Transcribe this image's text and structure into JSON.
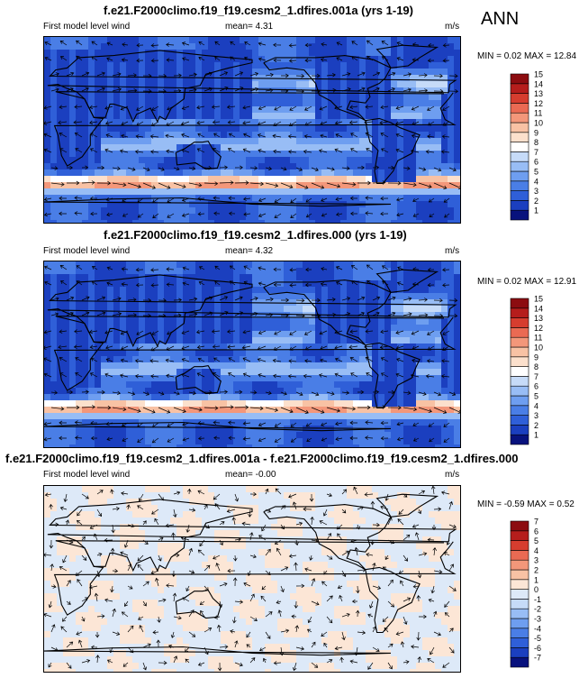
{
  "season": "ANN",
  "colors": {
    "wind_scale": [
      "#08127d",
      "#1b3fbf",
      "#2f5fd8",
      "#4a7ee6",
      "#6e9ef0",
      "#98bdf5",
      "#c6dbf8",
      "#ffffff",
      "#fce0cc",
      "#f8c2a4",
      "#f3977a",
      "#ea6a53",
      "#d63d2f",
      "#b51d1c",
      "#8c0c10"
    ],
    "diff_scale": [
      "#08127d",
      "#1b3fbf",
      "#2f5fd8",
      "#4a7ee6",
      "#6e9ef0",
      "#98bdf5",
      "#c6dbf8",
      "#dde9f8",
      "#fce6d6",
      "#f8c2a4",
      "#f3977a",
      "#ea6a53",
      "#d63d2f",
      "#b51d1c",
      "#8c0c10"
    ]
  },
  "panels": [
    {
      "title": "f.e21.F2000climo.f19_f19.cesm2_1.dfires.001a (yrs 1-19)",
      "field_label": "First model level wind",
      "mean_text": "mean=   4.31",
      "units": "m/s",
      "minmax_text": "MIN =  0.02 MAX =  12.84"
    },
    {
      "title": "f.e21.F2000climo.f19_f19.cesm2_1.dfires.000 (yrs 1-19)",
      "field_label": "First model level wind",
      "mean_text": "mean=   4.32",
      "units": "m/s",
      "minmax_text": "MIN =  0.02 MAX =  12.91"
    },
    {
      "title": "f.e21.F2000climo.f19_f19.cesm2_1.dfires.001a - f.e21.F2000climo.f19_f19.cesm2_1.dfires.000",
      "field_label": "First model level wind",
      "mean_text": "mean=  -0.00",
      "units": "m/s",
      "minmax_text": "MIN = -0.59 MAX =   0.52"
    }
  ],
  "chart_data": [
    {
      "type": "heatmap",
      "title": "f.e21.F2000climo.f19_f19.cesm2_1.dfires.001a (yrs 1-19)",
      "variable": "First model level wind speed with vectors",
      "units": "m/s",
      "mean": 4.31,
      "min": 0.02,
      "max": 12.84,
      "colorbar_levels": [
        1,
        2,
        3,
        4,
        5,
        6,
        7,
        8,
        9,
        10,
        11,
        12,
        13,
        14,
        15
      ]
    },
    {
      "type": "heatmap",
      "title": "f.e21.F2000climo.f19_f19.cesm2_1.dfires.000 (yrs 1-19)",
      "variable": "First model level wind speed with vectors",
      "units": "m/s",
      "mean": 4.32,
      "min": 0.02,
      "max": 12.91,
      "colorbar_levels": [
        1,
        2,
        3,
        4,
        5,
        6,
        7,
        8,
        9,
        10,
        11,
        12,
        13,
        14,
        15
      ]
    },
    {
      "type": "heatmap",
      "title": "f.e21.F2000climo.f19_f19.cesm2_1.dfires.001a - f.e21.F2000climo.f19_f19.cesm2_1.dfires.000",
      "variable": "Difference in first model level wind",
      "units": "m/s",
      "mean": -0.0,
      "min": -0.59,
      "max": 0.52,
      "colorbar_levels": [
        -7,
        -6,
        -5,
        -4,
        -3,
        -2,
        -1,
        0,
        1,
        2,
        3,
        4,
        5,
        6,
        7
      ]
    }
  ]
}
